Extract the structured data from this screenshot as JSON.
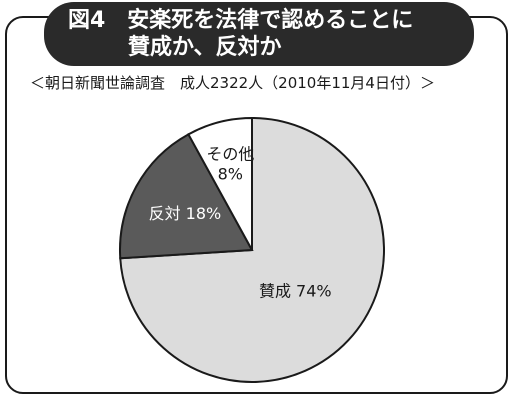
{
  "chart_data": {
    "type": "pie",
    "title_line1": "図4　安楽死を法律で認めることに",
    "title_line2": "賛成か、反対か",
    "subtitle": "＜朝日新聞世論調査　成人2322人（2010年11月4日付）＞",
    "slices": [
      {
        "name": "賛成",
        "value": 74,
        "label": "賛成 74%",
        "color": "#dcdcdc",
        "text_color": "#1a1a1a"
      },
      {
        "name": "反対",
        "value": 18,
        "label": "反対 18%",
        "color": "#5a5a5a",
        "text_color": "#ffffff"
      },
      {
        "name": "その他",
        "value": 8,
        "label_line1": "その他",
        "label_line2": "8%",
        "color": "#ffffff",
        "text_color": "#1a1a1a"
      }
    ]
  }
}
